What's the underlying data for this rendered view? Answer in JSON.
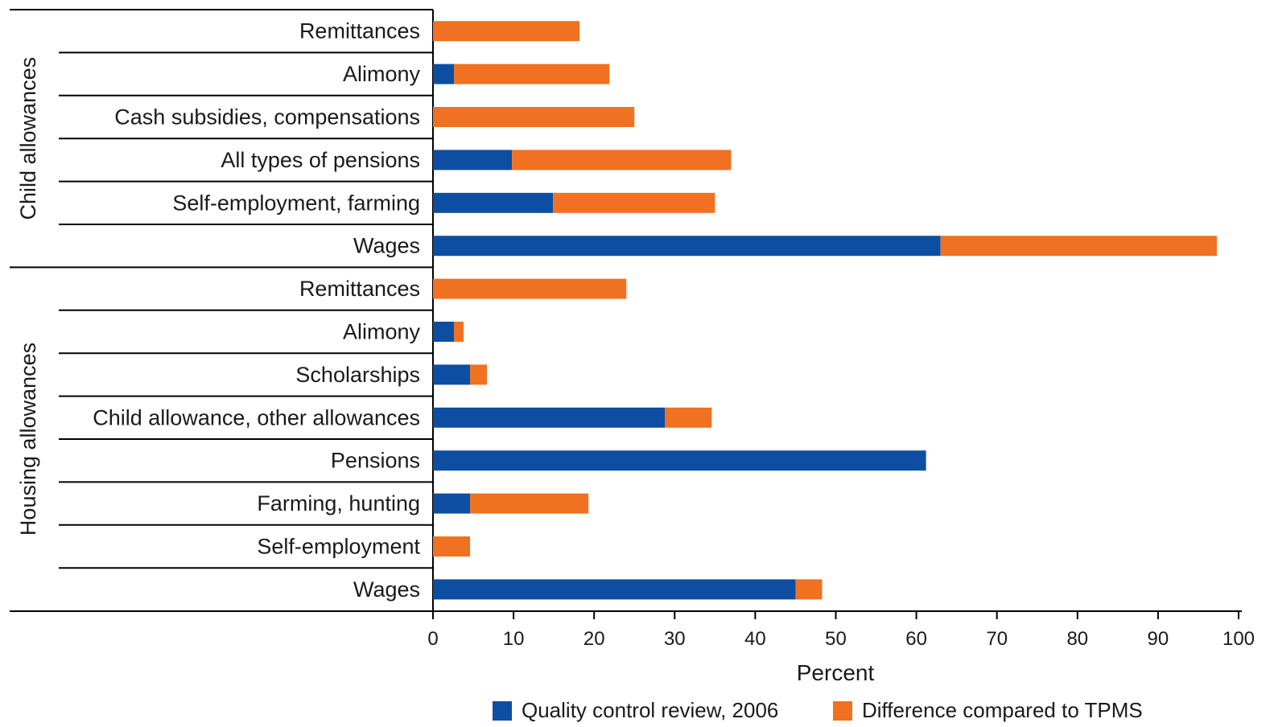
{
  "chart_data": {
    "type": "bar",
    "orientation": "horizontal",
    "stacked": true,
    "xlabel": "Percent",
    "xlim": [
      0,
      100
    ],
    "ticks": [
      0,
      10,
      20,
      30,
      40,
      50,
      60,
      70,
      80,
      90,
      100
    ],
    "legend_placement": "bottom",
    "colors": {
      "quality": "#0d4ea2",
      "difference": "#f07121"
    },
    "series": [
      {
        "name": "Quality control review, 2006",
        "key": "quality"
      },
      {
        "name": "Difference compared to TPMS",
        "key": "difference"
      }
    ],
    "groups": [
      {
        "label": "Child allowances",
        "rows": [
          {
            "label": "Remittances",
            "quality": 0,
            "difference": 18.2
          },
          {
            "label": "Alimony",
            "quality": 2.6,
            "difference": 19.3
          },
          {
            "label": "Cash subsidies, compensations",
            "quality": 0,
            "difference": 25
          },
          {
            "label": "All types of pensions",
            "quality": 9.8,
            "difference": 27.2
          },
          {
            "label": "Self-employment, farming",
            "quality": 14.9,
            "difference": 20.1
          },
          {
            "label": "Wages",
            "quality": 63,
            "difference": 34.3
          }
        ]
      },
      {
        "label": "Housing allowances",
        "rows": [
          {
            "label": "Remittances",
            "quality": 0,
            "difference": 24
          },
          {
            "label": "Alimony",
            "quality": 2.6,
            "difference": 1.2
          },
          {
            "label": "Scholarships",
            "quality": 4.6,
            "difference": 2.1
          },
          {
            "label": "Child allowance, other allowances",
            "quality": 28.8,
            "difference": 5.8
          },
          {
            "label": "Pensions",
            "quality": 61.2,
            "difference": 0
          },
          {
            "label": "Farming, hunting",
            "quality": 4.6,
            "difference": 14.7
          },
          {
            "label": "Self-employment",
            "quality": 0,
            "difference": 4.6
          },
          {
            "label": "Wages",
            "quality": 45,
            "difference": 3.3
          }
        ]
      }
    ]
  }
}
